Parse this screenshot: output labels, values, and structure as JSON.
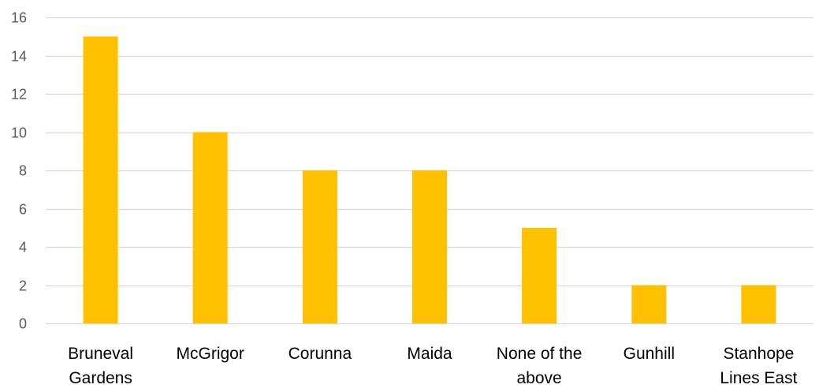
{
  "chart_data": {
    "type": "bar",
    "title": "",
    "xlabel": "",
    "ylabel": "",
    "categories": [
      [
        "Bruneval",
        "Gardens"
      ],
      [
        "McGrigor"
      ],
      [
        "Corunna"
      ],
      [
        "Maida"
      ],
      [
        "None of the",
        "above"
      ],
      [
        "Gunhill"
      ],
      [
        "Stanhope",
        "Lines East"
      ]
    ],
    "values": [
      15,
      10,
      8,
      8,
      5,
      2,
      2
    ],
    "ylim": [
      0,
      16
    ],
    "yticks": [
      0,
      2,
      4,
      6,
      8,
      10,
      12,
      14,
      16
    ],
    "grid": true,
    "legend": "none",
    "bar_color": "#FFC000",
    "grid_color": "#D9D9D9"
  }
}
